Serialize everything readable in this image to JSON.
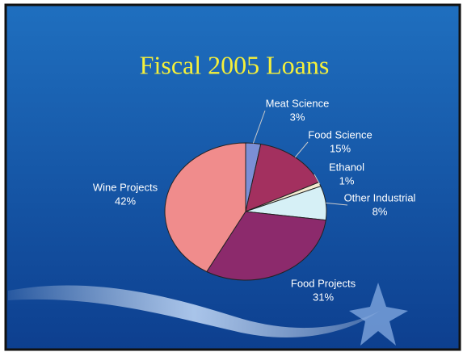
{
  "chart_data": {
    "type": "pie",
    "title": "Fiscal 2005 Loans",
    "categories": [
      "Meat Science",
      "Food Science",
      "Ethanol",
      "Other Industrial",
      "Food Projects",
      "Wine Projects"
    ],
    "values": [
      3,
      15,
      1,
      8,
      31,
      42
    ],
    "value_labels": [
      "3%",
      "15%",
      "1%",
      "8%",
      "31%",
      "42%"
    ],
    "colors": [
      "#7b8fd6",
      "#a3305f",
      "#f3ead0",
      "#d6f0f6",
      "#8c2a6c",
      "#f08c8c"
    ]
  }
}
